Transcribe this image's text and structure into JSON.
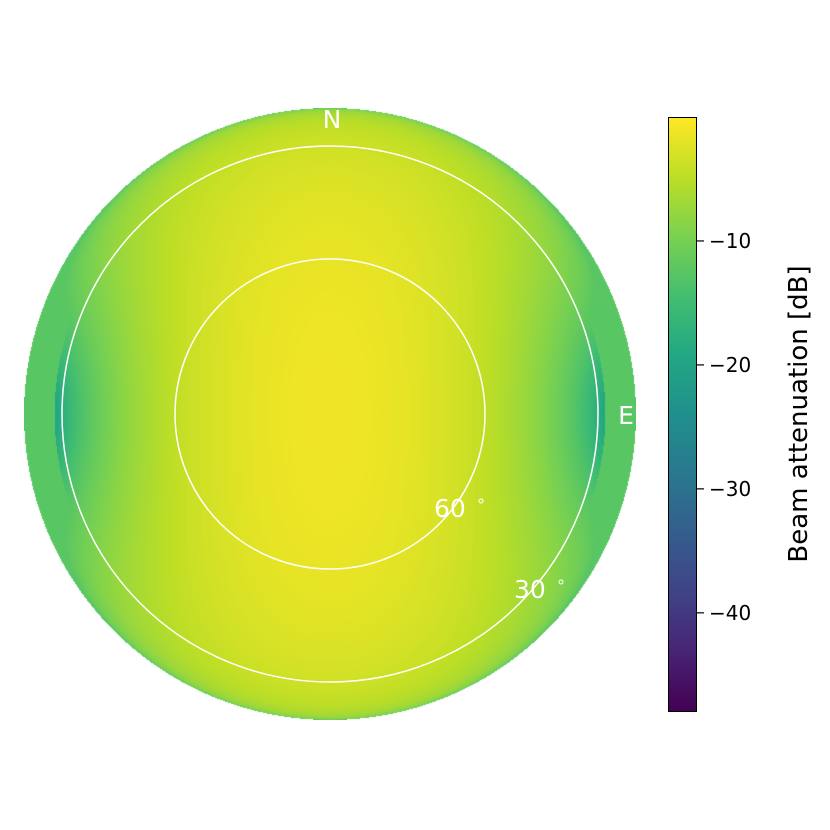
{
  "chart_data": {
    "type": "heatmap",
    "projection": "polar-sky",
    "direction_labels": [
      "N",
      "E"
    ],
    "elevation_circles": [
      30,
      60
    ],
    "elevation_labels": [
      "30",
      "60"
    ],
    "degree_symbol": "∘",
    "colorbar": {
      "label": "Beam attenuation [dB]",
      "ticks": [
        -10,
        -20,
        -30,
        -40
      ],
      "tick_labels": [
        "−10",
        "−20",
        "−30",
        "−40"
      ],
      "range": [
        -48,
        0
      ],
      "colormap": "viridis"
    }
  }
}
